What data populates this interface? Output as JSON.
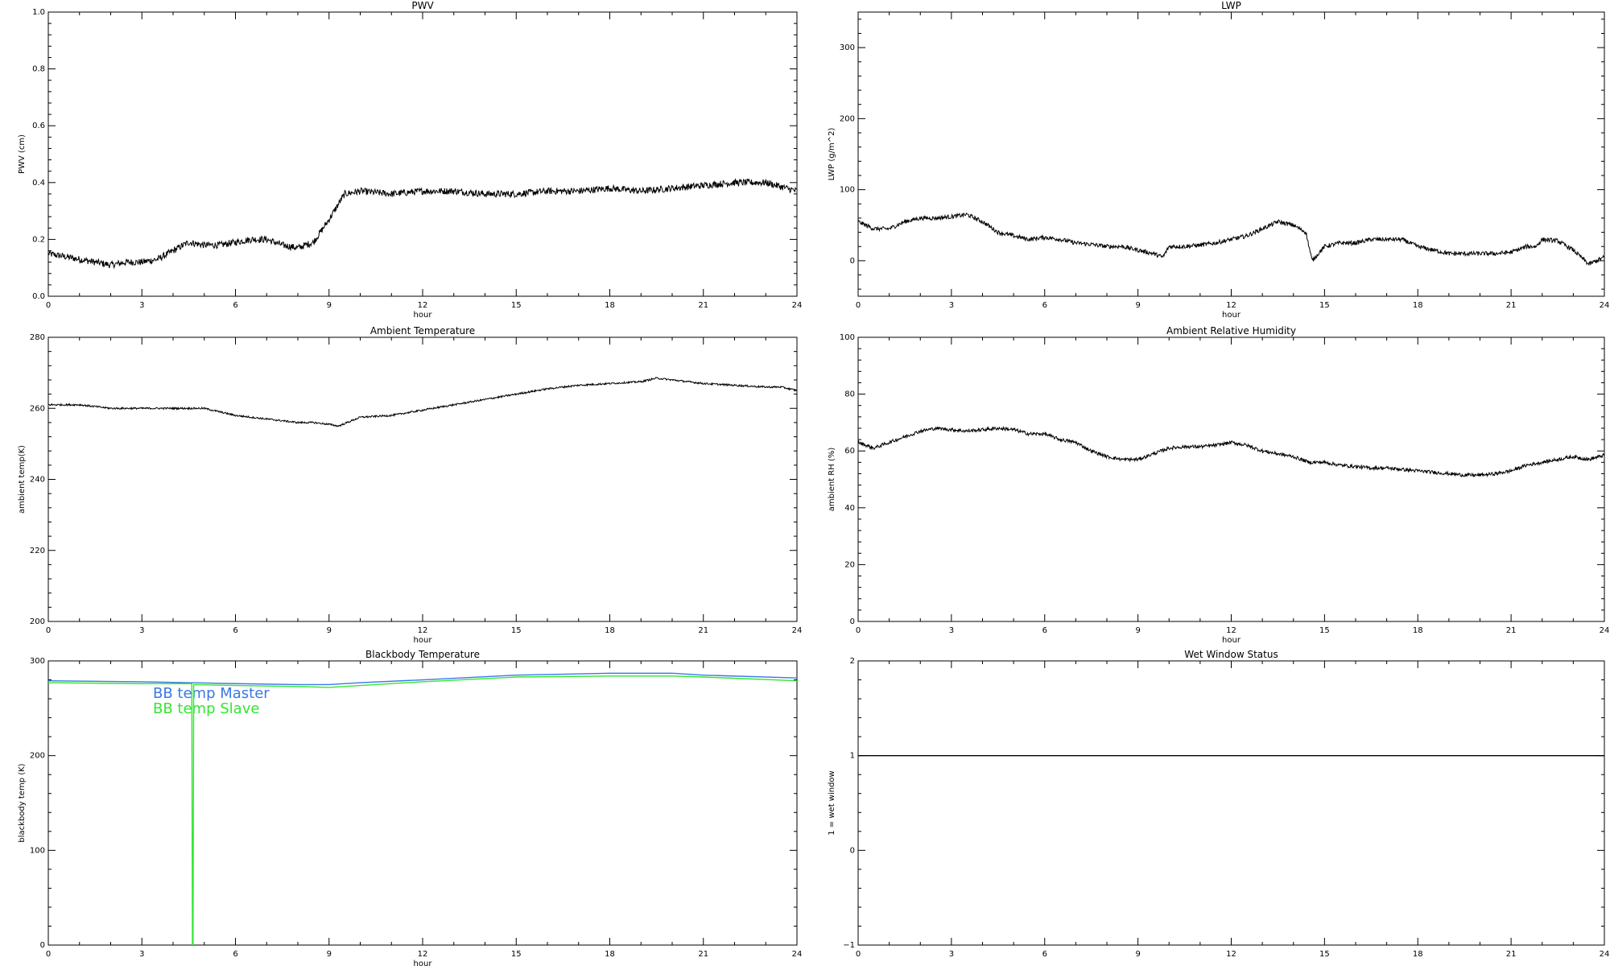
{
  "chart_data": [
    {
      "type": "line",
      "title": "PWV",
      "xlabel": "hour",
      "ylabel": "PWV (cm)",
      "xlim": [
        0,
        24
      ],
      "ylim": [
        0,
        1
      ],
      "xticks": [
        0,
        3,
        6,
        9,
        12,
        15,
        18,
        21,
        24
      ],
      "xtick_labels": [
        "0",
        "3",
        "6",
        "9",
        "12",
        "15",
        "18",
        "21",
        "24"
      ],
      "yticks": [
        0,
        0.2,
        0.4,
        0.6,
        0.8,
        1
      ],
      "ytick_labels": [
        "0.0",
        "0.2",
        "0.4",
        "0.6",
        "0.8",
        "1.0"
      ],
      "grid": false,
      "series": [
        {
          "color": "#000000",
          "noise": 0.012,
          "x": [
            0,
            0.5,
            1,
            1.5,
            2,
            2.5,
            3,
            3.5,
            4,
            4.5,
            5,
            5.5,
            6,
            6.5,
            7,
            7.5,
            8,
            8.5,
            9,
            9.5,
            10,
            11,
            12,
            13,
            14,
            15,
            16,
            17,
            18,
            19,
            20,
            21,
            22,
            23,
            24
          ],
          "y": [
            0.15,
            0.14,
            0.13,
            0.12,
            0.11,
            0.12,
            0.12,
            0.13,
            0.16,
            0.19,
            0.18,
            0.18,
            0.19,
            0.2,
            0.2,
            0.18,
            0.17,
            0.19,
            0.27,
            0.36,
            0.37,
            0.36,
            0.37,
            0.37,
            0.36,
            0.36,
            0.37,
            0.37,
            0.38,
            0.37,
            0.38,
            0.39,
            0.4,
            0.4,
            0.37
          ]
        }
      ]
    },
    {
      "type": "line",
      "title": "LWP",
      "xlabel": "hour",
      "ylabel": "LWP (g/m^2)",
      "xlim": [
        0,
        24
      ],
      "ylim": [
        -50,
        350
      ],
      "xticks": [
        0,
        3,
        6,
        9,
        12,
        15,
        18,
        21,
        24
      ],
      "xtick_labels": [
        "0",
        "3",
        "6",
        "9",
        "12",
        "15",
        "18",
        "21",
        "24"
      ],
      "yticks": [
        0,
        100,
        200,
        300
      ],
      "ytick_labels": [
        "0",
        "100",
        "200",
        "300"
      ],
      "grid": false,
      "series": [
        {
          "color": "#000000",
          "noise": 3,
          "x": [
            0,
            0.5,
            1,
            1.5,
            2,
            2.5,
            3,
            3.5,
            4,
            4.5,
            5,
            5.5,
            6,
            6.5,
            7,
            7.5,
            8,
            8.5,
            9,
            9.5,
            9.8,
            10,
            10.5,
            11,
            11.5,
            12,
            12.5,
            13,
            13.5,
            14,
            14.4,
            14.6,
            15,
            15.5,
            16,
            16.5,
            17,
            17.5,
            18,
            18.5,
            19,
            19.5,
            20,
            20.5,
            21,
            21.5,
            21.8,
            22,
            22.5,
            23,
            23.5,
            24
          ],
          "y": [
            55,
            45,
            45,
            55,
            60,
            60,
            62,
            65,
            55,
            40,
            35,
            30,
            33,
            30,
            25,
            23,
            20,
            20,
            15,
            10,
            5,
            20,
            20,
            22,
            25,
            30,
            35,
            45,
            55,
            50,
            40,
            0,
            20,
            25,
            25,
            30,
            30,
            30,
            20,
            15,
            10,
            10,
            10,
            10,
            12,
            20,
            20,
            30,
            28,
            15,
            -5,
            5
          ]
        }
      ]
    },
    {
      "type": "line",
      "title": "Ambient Temperature",
      "xlabel": "hour",
      "ylabel": "ambient temp(K)",
      "xlim": [
        0,
        24
      ],
      "ylim": [
        200,
        280
      ],
      "xticks": [
        0,
        3,
        6,
        9,
        12,
        15,
        18,
        21,
        24
      ],
      "xtick_labels": [
        "0",
        "3",
        "6",
        "9",
        "12",
        "15",
        "18",
        "21",
        "24"
      ],
      "yticks": [
        200,
        220,
        240,
        260,
        280
      ],
      "ytick_labels": [
        "200",
        "220",
        "240",
        "260",
        "280"
      ],
      "grid": false,
      "series": [
        {
          "color": "#000000",
          "noise": 0.25,
          "x": [
            0,
            1,
            2,
            3,
            4,
            5,
            5.5,
            6,
            7,
            8,
            8.5,
            9,
            9.3,
            10,
            11,
            12,
            13,
            14,
            15,
            16,
            17,
            18,
            19,
            19.5,
            20,
            21,
            22,
            23,
            23.5,
            24
          ],
          "y": [
            261,
            261,
            260,
            260,
            260,
            260,
            259,
            258,
            257,
            256,
            256,
            255.5,
            255,
            257.5,
            258,
            259.5,
            261,
            262.5,
            264,
            265.5,
            266.5,
            267,
            267.5,
            268.5,
            268,
            267,
            266.5,
            266,
            266,
            265
          ]
        }
      ]
    },
    {
      "type": "line",
      "title": "Ambient Relative Humidity",
      "xlabel": "hour",
      "ylabel": "ambient RH (%)",
      "xlim": [
        0,
        24
      ],
      "ylim": [
        0,
        100
      ],
      "xticks": [
        0,
        3,
        6,
        9,
        12,
        15,
        18,
        21,
        24
      ],
      "xtick_labels": [
        "0",
        "3",
        "6",
        "9",
        "12",
        "15",
        "18",
        "21",
        "24"
      ],
      "yticks": [
        0,
        20,
        40,
        60,
        80,
        100
      ],
      "ytick_labels": [
        "0",
        "20",
        "40",
        "60",
        "80",
        "100"
      ],
      "grid": false,
      "series": [
        {
          "color": "#000000",
          "noise": 0.6,
          "x": [
            0,
            0.5,
            1,
            1.5,
            2,
            2.5,
            3,
            3.5,
            4,
            4.5,
            5,
            5.5,
            6,
            6.5,
            7,
            7.5,
            8,
            8.5,
            9,
            9.5,
            10,
            10.5,
            11,
            11.5,
            12,
            12.5,
            13,
            13.5,
            14,
            14.5,
            15,
            15.5,
            16,
            16.5,
            17,
            17.5,
            18,
            18.5,
            19,
            19.5,
            20,
            20.5,
            21,
            21.5,
            22,
            22.5,
            23,
            23.5,
            24
          ],
          "y": [
            63,
            61,
            63,
            65,
            67,
            68,
            67.5,
            67,
            67.5,
            68,
            67.5,
            66,
            66,
            64,
            63,
            60,
            58,
            57,
            57,
            59,
            61,
            61.5,
            61.5,
            62,
            63,
            62,
            60,
            59,
            58,
            56,
            56,
            55,
            54.5,
            54,
            54,
            53.5,
            53,
            52.5,
            52,
            51.5,
            51.5,
            52,
            53,
            55,
            56,
            57,
            58,
            57,
            58.5
          ]
        }
      ]
    },
    {
      "type": "line",
      "title": "Blackbody Temperature",
      "xlabel": "hour",
      "ylabel": "blackbody temp (K)",
      "xlim": [
        0,
        24
      ],
      "ylim": [
        0,
        300
      ],
      "xticks": [
        0,
        3,
        6,
        9,
        12,
        15,
        18,
        21,
        24
      ],
      "xtick_labels": [
        "0",
        "3",
        "6",
        "9",
        "12",
        "15",
        "18",
        "21",
        "24"
      ],
      "yticks": [
        0,
        100,
        200,
        300
      ],
      "ytick_labels": [
        "0",
        "100",
        "200",
        "300"
      ],
      "grid": false,
      "legend": "top-left",
      "series": [
        {
          "name": "BB temp Master",
          "color": "#3a78e6",
          "noise": 0,
          "x": [
            0,
            3,
            6,
            8,
            9,
            10,
            12,
            15,
            18,
            20,
            21,
            24
          ],
          "y": [
            279,
            278,
            276,
            275,
            275,
            277,
            280,
            285,
            287,
            287,
            285,
            282
          ]
        },
        {
          "name": "BB temp Slave",
          "color": "#33e633",
          "noise": 0,
          "x": [
            0,
            3,
            4.6,
            4.62,
            4.64,
            4.66,
            6,
            8,
            9,
            10,
            12,
            15,
            18,
            20,
            21,
            24
          ],
          "y": [
            277,
            276,
            276,
            0,
            0,
            275,
            274,
            273,
            272,
            274,
            278,
            283,
            284,
            284,
            283,
            279
          ]
        }
      ]
    },
    {
      "type": "line",
      "title": "Wet Window Status",
      "xlabel": "",
      "ylabel": "1 = wet window",
      "xlim": [
        0,
        24
      ],
      "ylim": [
        -1,
        2
      ],
      "xticks": [
        0,
        3,
        6,
        9,
        12,
        15,
        18,
        21,
        24
      ],
      "xtick_labels": [
        "0",
        "3",
        "6",
        "9",
        "12",
        "15",
        "18",
        "21",
        "24"
      ],
      "yticks": [
        -1,
        0,
        1,
        2
      ],
      "ytick_labels": [
        "−1",
        "0",
        "1",
        "2"
      ],
      "grid": false,
      "series": [
        {
          "color": "#000000",
          "noise": 0,
          "x": [
            0,
            24
          ],
          "y": [
            1,
            1
          ]
        }
      ]
    }
  ]
}
